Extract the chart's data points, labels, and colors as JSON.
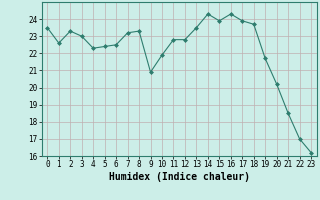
{
  "x": [
    0,
    1,
    2,
    3,
    4,
    5,
    6,
    7,
    8,
    9,
    10,
    11,
    12,
    13,
    14,
    15,
    16,
    17,
    18,
    19,
    20,
    21,
    22,
    23
  ],
  "y": [
    23.5,
    22.6,
    23.3,
    23.0,
    22.3,
    22.4,
    22.5,
    23.2,
    23.3,
    20.9,
    21.9,
    22.8,
    22.8,
    23.5,
    24.3,
    23.9,
    24.3,
    23.9,
    23.7,
    21.7,
    20.2,
    18.5,
    17.0,
    16.2
  ],
  "line_color": "#2e7d6e",
  "marker": "D",
  "marker_size": 2,
  "xlabel": "Humidex (Indice chaleur)",
  "ylim": [
    16,
    25
  ],
  "xlim": [
    -0.5,
    23.5
  ],
  "bg_color": "#cceee8",
  "grid_color": "#c0b0b0",
  "tick_label_fontsize": 5.5,
  "xlabel_fontsize": 7.0
}
